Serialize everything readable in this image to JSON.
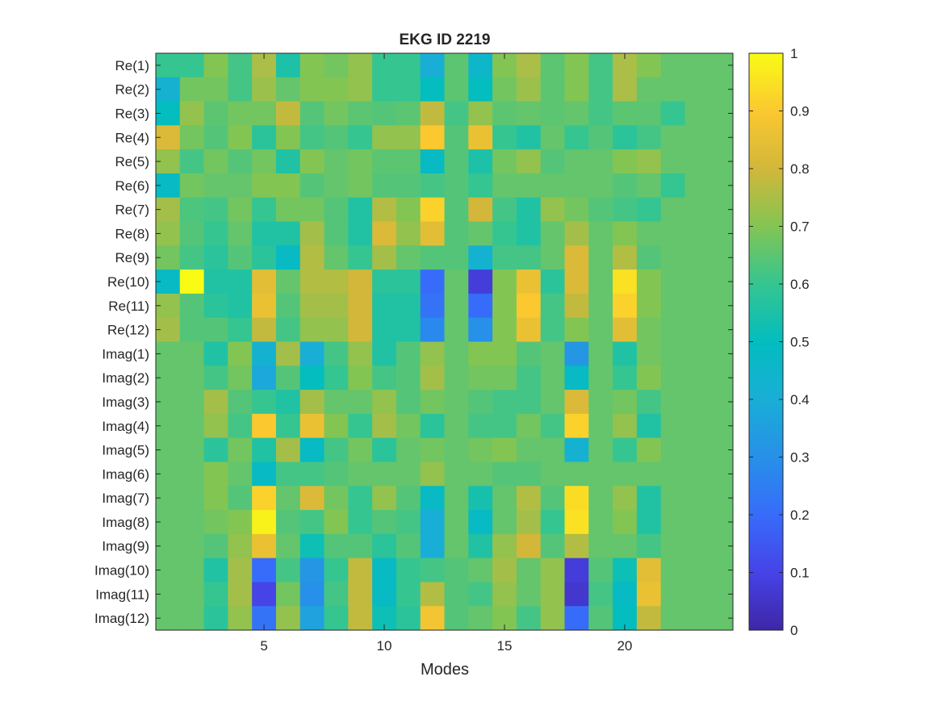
{
  "chart_data": {
    "type": "heatmap",
    "title": "EKG ID 2219",
    "xlabel": "Modes",
    "ylabel": "",
    "xlim": [
      0.5,
      24.5
    ],
    "x_ticks": [
      5,
      10,
      15,
      20
    ],
    "rows": [
      "Re(1)",
      "Re(2)",
      "Re(3)",
      "Re(4)",
      "Re(5)",
      "Re(6)",
      "Re(7)",
      "Re(8)",
      "Re(9)",
      "Re(10)",
      "Re(11)",
      "Re(12)",
      "Imag(1)",
      "Imag(2)",
      "Imag(3)",
      "Imag(4)",
      "Imag(5)",
      "Imag(6)",
      "Imag(7)",
      "Imag(8)",
      "Imag(9)",
      "Imag(10)",
      "Imag(11)",
      "Imag(12)"
    ],
    "colorbar": {
      "min": 0,
      "max": 1,
      "ticks": [
        0,
        0.1,
        0.2,
        0.3,
        0.4,
        0.5,
        0.6,
        0.7,
        0.8,
        0.9,
        1
      ],
      "colormap": "parula"
    },
    "values": [
      [
        0.6,
        0.6,
        0.7,
        0.62,
        0.75,
        0.55,
        0.7,
        0.68,
        0.72,
        0.6,
        0.6,
        0.4,
        0.65,
        0.45,
        0.7,
        0.75,
        0.65,
        0.7,
        0.62,
        0.75,
        0.7,
        0.66,
        0.66,
        0.66
      ],
      [
        0.42,
        0.68,
        0.68,
        0.62,
        0.73,
        0.66,
        0.7,
        0.7,
        0.72,
        0.6,
        0.6,
        0.5,
        0.65,
        0.5,
        0.68,
        0.73,
        0.65,
        0.7,
        0.62,
        0.75,
        0.66,
        0.66,
        0.66,
        0.66
      ],
      [
        0.5,
        0.72,
        0.65,
        0.68,
        0.68,
        0.78,
        0.64,
        0.68,
        0.65,
        0.64,
        0.65,
        0.78,
        0.62,
        0.72,
        0.65,
        0.66,
        0.65,
        0.66,
        0.62,
        0.65,
        0.65,
        0.6,
        0.66,
        0.66
      ],
      [
        0.82,
        0.68,
        0.64,
        0.7,
        0.58,
        0.7,
        0.62,
        0.64,
        0.6,
        0.72,
        0.72,
        0.9,
        0.64,
        0.86,
        0.6,
        0.56,
        0.66,
        0.6,
        0.64,
        0.58,
        0.62,
        0.66,
        0.66,
        0.66
      ],
      [
        0.72,
        0.62,
        0.68,
        0.64,
        0.68,
        0.56,
        0.7,
        0.66,
        0.68,
        0.65,
        0.65,
        0.48,
        0.64,
        0.55,
        0.68,
        0.72,
        0.64,
        0.66,
        0.66,
        0.7,
        0.72,
        0.66,
        0.66,
        0.66
      ],
      [
        0.48,
        0.68,
        0.66,
        0.66,
        0.7,
        0.7,
        0.64,
        0.66,
        0.68,
        0.64,
        0.64,
        0.62,
        0.64,
        0.6,
        0.66,
        0.66,
        0.66,
        0.66,
        0.66,
        0.64,
        0.66,
        0.6,
        0.66,
        0.66
      ],
      [
        0.74,
        0.63,
        0.62,
        0.68,
        0.6,
        0.68,
        0.68,
        0.64,
        0.56,
        0.76,
        0.7,
        0.92,
        0.64,
        0.8,
        0.62,
        0.56,
        0.72,
        0.68,
        0.64,
        0.62,
        0.6,
        0.66,
        0.66,
        0.66
      ],
      [
        0.72,
        0.64,
        0.6,
        0.66,
        0.56,
        0.56,
        0.74,
        0.64,
        0.56,
        0.82,
        0.72,
        0.84,
        0.64,
        0.66,
        0.6,
        0.56,
        0.66,
        0.74,
        0.66,
        0.7,
        0.66,
        0.66,
        0.66,
        0.66
      ],
      [
        0.68,
        0.62,
        0.58,
        0.64,
        0.58,
        0.48,
        0.76,
        0.66,
        0.6,
        0.74,
        0.66,
        0.64,
        0.64,
        0.42,
        0.62,
        0.62,
        0.66,
        0.82,
        0.66,
        0.76,
        0.64,
        0.66,
        0.66,
        0.66
      ],
      [
        0.48,
        1.0,
        0.56,
        0.56,
        0.84,
        0.66,
        0.76,
        0.76,
        0.8,
        0.58,
        0.58,
        0.2,
        0.66,
        0.08,
        0.7,
        0.86,
        0.58,
        0.82,
        0.66,
        0.95,
        0.7,
        0.66,
        0.66,
        0.66
      ],
      [
        0.72,
        0.64,
        0.58,
        0.56,
        0.86,
        0.64,
        0.74,
        0.74,
        0.8,
        0.56,
        0.56,
        0.22,
        0.66,
        0.2,
        0.7,
        0.9,
        0.62,
        0.78,
        0.66,
        0.92,
        0.7,
        0.66,
        0.66,
        0.66
      ],
      [
        0.74,
        0.64,
        0.64,
        0.6,
        0.78,
        0.62,
        0.72,
        0.72,
        0.8,
        0.56,
        0.56,
        0.28,
        0.66,
        0.3,
        0.7,
        0.86,
        0.62,
        0.7,
        0.66,
        0.84,
        0.68,
        0.66,
        0.66,
        0.66
      ],
      [
        0.66,
        0.66,
        0.56,
        0.7,
        0.42,
        0.74,
        0.4,
        0.62,
        0.72,
        0.56,
        0.64,
        0.72,
        0.66,
        0.7,
        0.7,
        0.64,
        0.66,
        0.32,
        0.66,
        0.56,
        0.68,
        0.66,
        0.66,
        0.66
      ],
      [
        0.66,
        0.66,
        0.62,
        0.68,
        0.38,
        0.64,
        0.5,
        0.6,
        0.7,
        0.62,
        0.64,
        0.74,
        0.66,
        0.68,
        0.68,
        0.62,
        0.66,
        0.48,
        0.66,
        0.6,
        0.7,
        0.66,
        0.66,
        0.66
      ],
      [
        0.66,
        0.66,
        0.74,
        0.64,
        0.6,
        0.56,
        0.74,
        0.66,
        0.66,
        0.72,
        0.64,
        0.68,
        0.66,
        0.64,
        0.62,
        0.62,
        0.66,
        0.82,
        0.66,
        0.68,
        0.62,
        0.66,
        0.66,
        0.66
      ],
      [
        0.66,
        0.66,
        0.72,
        0.62,
        0.9,
        0.6,
        0.86,
        0.7,
        0.6,
        0.74,
        0.68,
        0.58,
        0.66,
        0.62,
        0.62,
        0.68,
        0.62,
        0.92,
        0.66,
        0.72,
        0.56,
        0.66,
        0.66,
        0.66
      ],
      [
        0.66,
        0.66,
        0.58,
        0.68,
        0.56,
        0.74,
        0.48,
        0.62,
        0.68,
        0.58,
        0.66,
        0.68,
        0.66,
        0.68,
        0.7,
        0.66,
        0.66,
        0.42,
        0.66,
        0.6,
        0.7,
        0.66,
        0.66,
        0.66
      ],
      [
        0.66,
        0.66,
        0.7,
        0.66,
        0.48,
        0.62,
        0.62,
        0.64,
        0.66,
        0.66,
        0.66,
        0.72,
        0.66,
        0.66,
        0.64,
        0.64,
        0.66,
        0.66,
        0.66,
        0.66,
        0.66,
        0.66,
        0.66,
        0.66
      ],
      [
        0.66,
        0.66,
        0.7,
        0.64,
        0.92,
        0.66,
        0.82,
        0.68,
        0.6,
        0.72,
        0.64,
        0.48,
        0.66,
        0.54,
        0.66,
        0.76,
        0.64,
        0.94,
        0.66,
        0.72,
        0.56,
        0.66,
        0.66,
        0.66
      ],
      [
        0.66,
        0.66,
        0.68,
        0.7,
        0.98,
        0.64,
        0.62,
        0.7,
        0.6,
        0.64,
        0.62,
        0.4,
        0.66,
        0.48,
        0.66,
        0.74,
        0.6,
        0.95,
        0.66,
        0.7,
        0.56,
        0.66,
        0.66,
        0.66
      ],
      [
        0.66,
        0.66,
        0.64,
        0.72,
        0.86,
        0.66,
        0.52,
        0.64,
        0.64,
        0.58,
        0.64,
        0.4,
        0.66,
        0.56,
        0.72,
        0.8,
        0.64,
        0.76,
        0.66,
        0.66,
        0.62,
        0.66,
        0.66,
        0.66
      ],
      [
        0.66,
        0.66,
        0.56,
        0.74,
        0.2,
        0.62,
        0.32,
        0.6,
        0.78,
        0.48,
        0.6,
        0.62,
        0.64,
        0.66,
        0.74,
        0.66,
        0.72,
        0.08,
        0.64,
        0.52,
        0.84,
        0.66,
        0.66,
        0.66
      ],
      [
        0.66,
        0.66,
        0.6,
        0.74,
        0.1,
        0.68,
        0.3,
        0.62,
        0.78,
        0.48,
        0.6,
        0.76,
        0.64,
        0.62,
        0.72,
        0.66,
        0.72,
        0.06,
        0.62,
        0.48,
        0.86,
        0.66,
        0.66,
        0.66
      ],
      [
        0.66,
        0.66,
        0.58,
        0.72,
        0.22,
        0.72,
        0.36,
        0.6,
        0.78,
        0.52,
        0.58,
        0.88,
        0.64,
        0.66,
        0.7,
        0.62,
        0.72,
        0.2,
        0.64,
        0.5,
        0.78,
        0.66,
        0.66,
        0.66
      ]
    ]
  }
}
